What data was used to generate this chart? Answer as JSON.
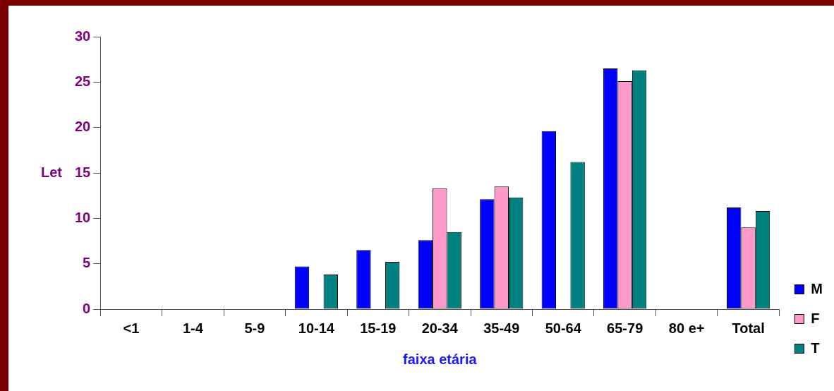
{
  "chart_data": {
    "type": "bar",
    "xlabel": "faixa etária",
    "ylabel": "Let",
    "categories": [
      "<1",
      "1-4",
      "5-9",
      "10-14",
      "15-19",
      "20-34",
      "35-49",
      "50-64",
      "65-79",
      "80 e+",
      "Total"
    ],
    "series": [
      {
        "name": "M",
        "color": "#0000ff",
        "values": [
          null,
          null,
          null,
          4.7,
          6.5,
          7.6,
          12.1,
          19.6,
          26.5,
          null,
          11.2
        ]
      },
      {
        "name": "F",
        "color": "#ff99cc",
        "values": [
          null,
          null,
          null,
          null,
          null,
          13.3,
          13.5,
          null,
          25.1,
          null,
          9.0
        ]
      },
      {
        "name": "T",
        "color": "#008080",
        "values": [
          null,
          null,
          null,
          3.8,
          5.2,
          8.5,
          12.3,
          16.2,
          26.3,
          null,
          10.8
        ]
      }
    ],
    "ylim": [
      0,
      30
    ],
    "yticks": [
      0,
      5,
      10,
      15,
      20,
      25,
      30
    ],
    "grid": false,
    "legend": "bottom right"
  }
}
